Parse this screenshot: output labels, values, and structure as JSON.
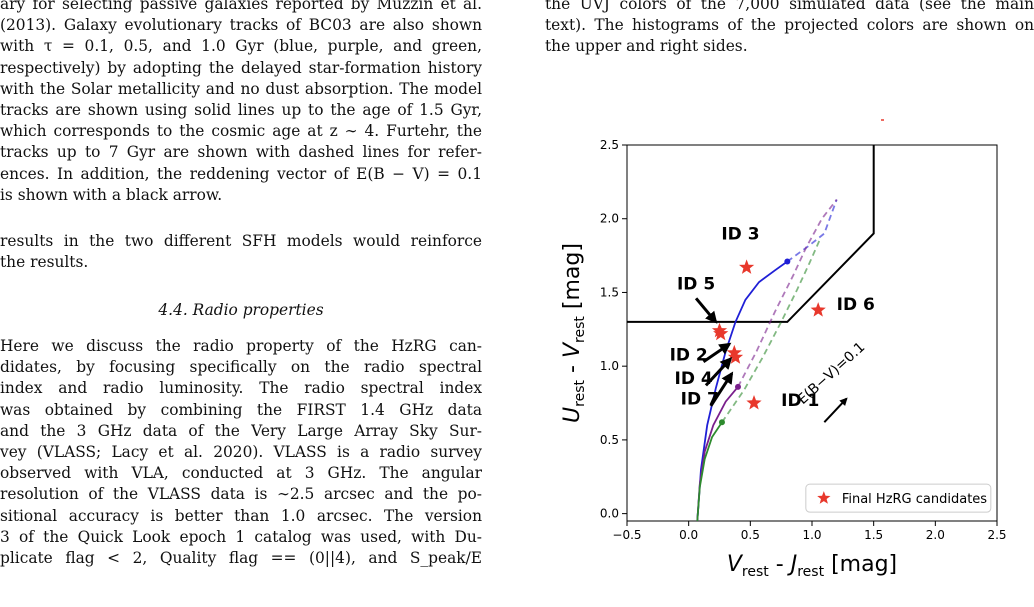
{
  "left_column": {
    "caption_lines": [
      "ary for selecting passive galaxies reported by Muzzin et al.",
      "(2013). Galaxy evolutionary tracks of BC03 are also shown",
      "with τ = 0.1, 0.5, and 1.0 Gyr (blue, purple, and green,",
      "respectively) by adopting the delayed star-formation history",
      "with the Solar metallicity and no dust absorption. The model",
      "tracks are shown using solid lines up to the age of 1.5 Gyr,",
      "which corresponds to the cosmic age at z ∼ 4. Furtehr, the",
      "tracks up to 7 Gyr are shown with dashed lines for refer-",
      "ences. In addition, the reddening vector of E(B − V) = 0.1",
      "is shown with a black arrow."
    ],
    "para1_lines": [
      "results in the two different SFH models would reinforce",
      "the results."
    ],
    "section_heading": "4.4. Radio properties",
    "para2_lines": [
      "Here we discuss the radio property of the HzRG can-",
      "didates, by focusing specifically on the radio spectral",
      "index and radio luminosity. The radio spectral index",
      "was obtained by combining the FIRST 1.4 GHz data",
      "and the 3 GHz data of the Very Large Array Sky Sur-",
      "vey (VLASS; Lacy et al. 2020). VLASS is a radio survey",
      "observed with VLA, conducted at 3 GHz. The angular",
      "resolution of the VLASS data is ∼2.5 arcsec and the po-",
      "sitional accuracy is better than 1.0 arcsec. The version",
      "3 of the Quick Look epoch 1 catalog was used, with Du-",
      "plicate flag < 2, Quality flag == (0||4), and S_peak/E"
    ]
  },
  "right_column": {
    "caption_lines": [
      "the UVJ colors of the 7,000 simulated data (see the main",
      "text). The histograms of the projected colors are shown on",
      "the upper and right sides."
    ]
  },
  "chart_data": {
    "type": "scatter",
    "title": "",
    "xlabel": "V_rest - J_rest [mag]",
    "ylabel": "U_rest - V_rest [mag]",
    "xlim": [
      -0.5,
      2.5
    ],
    "ylim": [
      -0.05,
      2.5
    ],
    "xticks": [
      "−0.5",
      "0.0",
      "0.5",
      "1.0",
      "1.5",
      "2.0",
      "2.5"
    ],
    "yticks": [
      "0.0",
      "0.5",
      "1.0",
      "1.5",
      "2.0",
      "2.5"
    ],
    "grid": false,
    "legend": {
      "placement": "lower-right",
      "label": "Final HzRG candidates"
    },
    "colors": {
      "candidates": "#e8382c",
      "tau_0_1": "#1f1fd6",
      "tau_0_5": "#7a1f8c",
      "tau_1_0": "#2e8b2e",
      "boundary": "#000000"
    },
    "series": [
      {
        "name": "Final HzRG candidates",
        "points": [
          {
            "label": "ID 1",
            "x": 0.53,
            "y": 0.75
          },
          {
            "label": "ID 2",
            "x": 0.37,
            "y": 1.09
          },
          {
            "label": "ID 3",
            "x": 0.47,
            "y": 1.67
          },
          {
            "label": "ID 4",
            "x": 0.38,
            "y": 1.06
          },
          {
            "label": "ID 5",
            "x": 0.25,
            "y": 1.24
          },
          {
            "label": "ID 6",
            "x": 1.05,
            "y": 1.38
          },
          {
            "label": "ID 7",
            "x": 0.26,
            "y": 1.22
          }
        ]
      }
    ],
    "tracks": {
      "tau_0_1": {
        "solid": [
          [
            0.07,
            -0.05
          ],
          [
            0.1,
            0.3
          ],
          [
            0.15,
            0.6
          ],
          [
            0.22,
            0.85
          ],
          [
            0.3,
            1.1
          ],
          [
            0.38,
            1.3
          ],
          [
            0.46,
            1.45
          ],
          [
            0.57,
            1.57
          ],
          [
            0.7,
            1.65
          ],
          [
            0.8,
            1.71
          ]
        ],
        "dashed": [
          [
            0.8,
            1.71
          ],
          [
            0.98,
            1.82
          ],
          [
            1.1,
            1.9
          ],
          [
            1.2,
            2.13
          ]
        ],
        "marker": [
          0.8,
          1.71
        ]
      },
      "tau_0_5": {
        "solid": [
          [
            0.07,
            -0.05
          ],
          [
            0.09,
            0.2
          ],
          [
            0.13,
            0.42
          ],
          [
            0.2,
            0.6
          ],
          [
            0.3,
            0.76
          ],
          [
            0.4,
            0.86
          ]
        ],
        "dashed": [
          [
            0.4,
            0.86
          ],
          [
            0.55,
            1.1
          ],
          [
            0.7,
            1.37
          ],
          [
            0.85,
            1.62
          ],
          [
            0.95,
            1.8
          ],
          [
            1.08,
            2.0
          ],
          [
            1.2,
            2.13
          ]
        ],
        "marker": [
          0.4,
          0.86
        ]
      },
      "tau_1_0": {
        "solid": [
          [
            0.07,
            -0.05
          ],
          [
            0.09,
            0.18
          ],
          [
            0.13,
            0.37
          ],
          [
            0.19,
            0.52
          ],
          [
            0.27,
            0.62
          ]
        ],
        "dashed": [
          [
            0.27,
            0.62
          ],
          [
            0.45,
            0.84
          ],
          [
            0.6,
            1.06
          ],
          [
            0.75,
            1.3
          ],
          [
            0.88,
            1.52
          ],
          [
            0.98,
            1.7
          ],
          [
            1.07,
            1.87
          ]
        ],
        "marker": [
          0.27,
          0.62
        ]
      }
    },
    "boundary": [
      [
        -0.5,
        1.3
      ],
      [
        0.8,
        1.3
      ],
      [
        1.5,
        1.9
      ],
      [
        1.5,
        2.5
      ]
    ],
    "annotations": [
      {
        "text": "ID 3",
        "x": 0.42,
        "y": 1.86
      },
      {
        "text": "ID 5",
        "x": 0.06,
        "y": 1.52
      },
      {
        "text": "ID 6",
        "x": 1.2,
        "y": 1.38
      },
      {
        "text": "ID 2",
        "x": 0.0,
        "y": 1.04
      },
      {
        "text": "ID 4",
        "x": 0.04,
        "y": 0.88
      },
      {
        "text": "ID 7",
        "x": 0.09,
        "y": 0.74
      },
      {
        "text": "ID 1",
        "x": 0.75,
        "y": 0.73
      }
    ],
    "arrows": [
      {
        "from": [
          0.06,
          1.46
        ],
        "to": [
          0.22,
          1.3
        ]
      },
      {
        "from": [
          0.12,
          1.03
        ],
        "to": [
          0.33,
          1.15
        ]
      },
      {
        "from": [
          0.14,
          0.87
        ],
        "to": [
          0.34,
          1.05
        ]
      },
      {
        "from": [
          0.18,
          0.73
        ],
        "to": [
          0.35,
          0.95
        ]
      }
    ],
    "reddening_vector": {
      "label": "E(B−V)=0.1",
      "from": [
        1.1,
        0.62
      ],
      "to": [
        1.28,
        0.78
      ]
    }
  }
}
